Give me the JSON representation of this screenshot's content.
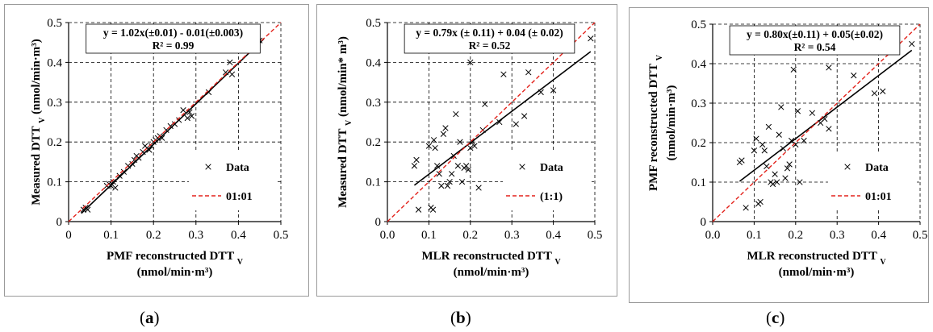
{
  "chart_data": [
    {
      "type": "scatter",
      "panel_label": "a",
      "equation": "y = 1.02x(±0.01) - 0.01(±0.003)",
      "r2": "R² = 0.99",
      "xlabel": "PMF reconstructed DTT",
      "xlabel_sub": "V",
      "xlabel_units": "(nmol/min·m³)",
      "ylabel": "Measured DTT",
      "ylabel_sub": "V",
      "ylabel_units": "(nmol/min·m³)",
      "xlim": [
        0,
        0.5
      ],
      "ylim": [
        0,
        0.5
      ],
      "xticks": [
        "0",
        "0.1",
        "0.2",
        "0.3",
        "0.4",
        "0.5"
      ],
      "yticks": [
        "0",
        "0.1",
        "0.2",
        "0.3",
        "0.4",
        "0.5"
      ],
      "grid": true,
      "legend_position": "bottom-right",
      "series": [
        {
          "name": "Data",
          "kind": "points",
          "marker": "x",
          "color": "#000000",
          "x": [
            0.035,
            0.04,
            0.045,
            0.09,
            0.095,
            0.1,
            0.105,
            0.11,
            0.12,
            0.13,
            0.14,
            0.15,
            0.155,
            0.16,
            0.165,
            0.175,
            0.18,
            0.185,
            0.19,
            0.195,
            0.2,
            0.205,
            0.21,
            0.215,
            0.22,
            0.23,
            0.24,
            0.25,
            0.26,
            0.27,
            0.28,
            0.285,
            0.29,
            0.33,
            0.37,
            0.38,
            0.385,
            0.45
          ],
          "y": [
            0.03,
            0.035,
            0.03,
            0.09,
            0.095,
            0.09,
            0.1,
            0.085,
            0.115,
            0.125,
            0.14,
            0.145,
            0.155,
            0.165,
            0.16,
            0.175,
            0.19,
            0.185,
            0.18,
            0.19,
            0.2,
            0.205,
            0.21,
            0.215,
            0.21,
            0.23,
            0.24,
            0.245,
            0.255,
            0.28,
            0.26,
            0.275,
            0.265,
            0.325,
            0.375,
            0.4,
            0.37,
            0.455
          ]
        },
        {
          "name": "fit",
          "kind": "line",
          "color": "#000000",
          "x": [
            0.03,
            0.46
          ],
          "y": [
            0.0206,
            0.4592
          ]
        },
        {
          "name": "01:01",
          "kind": "line",
          "dashed": true,
          "color": "#e3221b",
          "x": [
            0,
            0.5
          ],
          "y": [
            0,
            0.5
          ]
        }
      ]
    },
    {
      "type": "scatter",
      "panel_label": "b",
      "equation": "y = 0.79x (± 0.11) + 0.04 (± 0.02)",
      "r2": "R² = 0.52",
      "xlabel": "MLR reconstructed DTT",
      "xlabel_sub": "V",
      "xlabel_units": "(nmol/min·m³)",
      "ylabel": "Measured DTT",
      "ylabel_sub": "V",
      "ylabel_units": "(nmol/min* m³)",
      "xlim": [
        0,
        0.5
      ],
      "ylim": [
        0,
        0.5
      ],
      "xticks": [
        "0.0",
        "0.1",
        "0.2",
        "0.3",
        "0.4",
        "0.5"
      ],
      "yticks": [
        "0",
        "0.1",
        "0.2",
        "0.3",
        "0.4",
        "0.5"
      ],
      "grid": true,
      "legend_position": "bottom-right",
      "series": [
        {
          "name": "Data",
          "kind": "points",
          "marker": "x",
          "color": "#000000",
          "x": [
            0.065,
            0.07,
            0.075,
            0.1,
            0.105,
            0.11,
            0.112,
            0.115,
            0.12,
            0.125,
            0.13,
            0.135,
            0.14,
            0.145,
            0.15,
            0.155,
            0.16,
            0.165,
            0.17,
            0.175,
            0.18,
            0.185,
            0.19,
            0.195,
            0.2,
            0.2,
            0.205,
            0.21,
            0.22,
            0.23,
            0.235,
            0.27,
            0.28,
            0.31,
            0.33,
            0.34,
            0.37,
            0.4,
            0.49
          ],
          "y": [
            0.14,
            0.155,
            0.03,
            0.19,
            0.035,
            0.03,
            0.205,
            0.185,
            0.14,
            0.12,
            0.09,
            0.22,
            0.235,
            0.09,
            0.1,
            0.12,
            0.165,
            0.27,
            0.14,
            0.2,
            0.1,
            0.135,
            0.14,
            0.13,
            0.4,
            0.185,
            0.2,
            0.19,
            0.085,
            0.23,
            0.295,
            0.25,
            0.37,
            0.245,
            0.265,
            0.375,
            0.325,
            0.33,
            0.46
          ]
        },
        {
          "name": "fit",
          "kind": "line",
          "color": "#000000",
          "x": [
            0.065,
            0.49
          ],
          "y": [
            0.0914,
            0.4271
          ]
        },
        {
          "name": "(1:1)",
          "kind": "line",
          "dashed": true,
          "color": "#e3221b",
          "x": [
            0,
            0.5
          ],
          "y": [
            0,
            0.5
          ]
        }
      ]
    },
    {
      "type": "scatter",
      "panel_label": "c",
      "equation": "y = 0.80x(±0.11) + 0.05(±0.02)",
      "r2": "R² = 0.54",
      "xlabel": "MLR reconstructed DTT",
      "xlabel_sub": "V",
      "xlabel_units": "(nmol/min·m³)",
      "ylabel": "PMF reconstructed DTT",
      "ylabel_sub": "V",
      "ylabel_units": "(nmol/min·m³)",
      "xlim": [
        0,
        0.5
      ],
      "ylim": [
        0,
        0.5
      ],
      "xticks": [
        "0.0",
        "0.1",
        "0.2",
        "0.3",
        "0.4",
        "0.5"
      ],
      "yticks": [
        "0",
        "0.1",
        "0.2",
        "0.3",
        "0.4",
        "0.5"
      ],
      "grid": true,
      "legend_position": "bottom-right",
      "series": [
        {
          "name": "Data",
          "kind": "points",
          "marker": "x",
          "color": "#000000",
          "x": [
            0.065,
            0.07,
            0.08,
            0.1,
            0.105,
            0.11,
            0.115,
            0.12,
            0.125,
            0.13,
            0.135,
            0.14,
            0.145,
            0.15,
            0.155,
            0.16,
            0.165,
            0.17,
            0.175,
            0.18,
            0.185,
            0.19,
            0.195,
            0.2,
            0.205,
            0.21,
            0.22,
            0.24,
            0.26,
            0.27,
            0.28,
            0.28,
            0.34,
            0.39,
            0.41,
            0.48
          ],
          "y": [
            0.15,
            0.155,
            0.035,
            0.18,
            0.21,
            0.045,
            0.05,
            0.195,
            0.18,
            0.14,
            0.24,
            0.1,
            0.095,
            0.12,
            0.1,
            0.22,
            0.29,
            0.185,
            0.11,
            0.135,
            0.145,
            0.205,
            0.385,
            0.195,
            0.28,
            0.1,
            0.205,
            0.275,
            0.25,
            0.26,
            0.235,
            0.39,
            0.37,
            0.325,
            0.33,
            0.45
          ]
        },
        {
          "name": "fit",
          "kind": "line",
          "color": "#000000",
          "x": [
            0.065,
            0.48
          ],
          "y": [
            0.102,
            0.434
          ]
        },
        {
          "name": "01:01",
          "kind": "line",
          "dashed": true,
          "color": "#e3221b",
          "x": [
            0,
            0.5
          ],
          "y": [
            0,
            0.5
          ]
        }
      ]
    }
  ],
  "captions": {
    "a": "a",
    "b": "b",
    "c": "c"
  }
}
